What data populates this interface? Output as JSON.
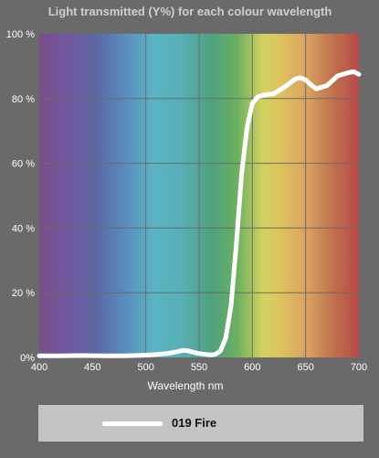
{
  "chart_data": {
    "type": "line",
    "title": "Light transmitted (Y%) for each colour wavelength",
    "xlabel": "Wavelength nm",
    "ylabel": "",
    "xlim": [
      400,
      700
    ],
    "ylim": [
      0,
      100
    ],
    "x_ticks": [
      "400",
      "450",
      "500",
      "550",
      "600",
      "650",
      "700"
    ],
    "y_ticks": [
      "0% ",
      "20 %",
      "40 %",
      "60 %",
      "80 %",
      "100 %"
    ],
    "grid": true,
    "background": "visible spectrum gradient",
    "series": [
      {
        "name": "019 Fire",
        "color": "#ffffff",
        "x": [
          400,
          420,
          440,
          460,
          480,
          500,
          510,
          520,
          530,
          535,
          540,
          550,
          560,
          565,
          570,
          575,
          580,
          585,
          590,
          595,
          600,
          605,
          610,
          615,
          620,
          630,
          640,
          645,
          650,
          655,
          660,
          670,
          680,
          690,
          695,
          700
        ],
        "y": [
          0.5,
          0.5,
          0.6,
          0.5,
          0.5,
          0.7,
          0.9,
          1.2,
          1.8,
          2.2,
          2.0,
          1.2,
          0.8,
          0.9,
          2.0,
          6.0,
          16.0,
          35.0,
          57.0,
          71.0,
          78.5,
          80.5,
          81.0,
          81.3,
          81.5,
          83.5,
          86.0,
          86.4,
          85.8,
          84.2,
          83.0,
          84.0,
          87.0,
          88.0,
          88.3,
          87.5
        ]
      }
    ]
  }
}
